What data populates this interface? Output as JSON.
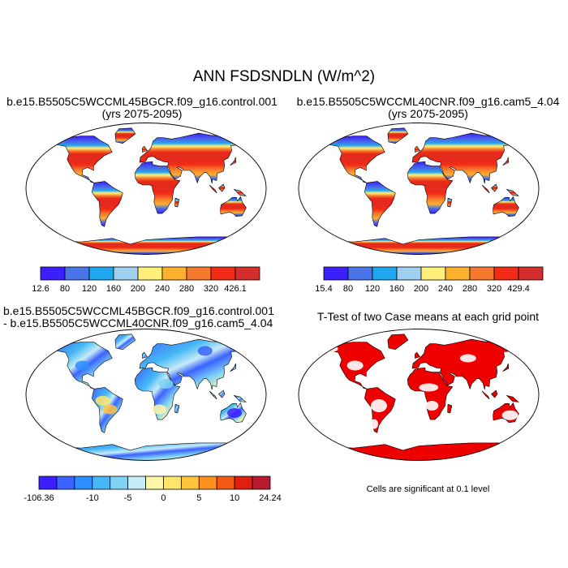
{
  "figure": {
    "title": "ANN FSDSNDLN (W/m^2)"
  },
  "panels": {
    "case1": {
      "title_line1": "b.e15.B5505C5WCCML45BGCR.f09_g16.control.001",
      "title_line2": "(yrs 2075-2095)"
    },
    "case2": {
      "title_line1": "b.e15.B5505C5WCCML40CNR.f09_g16.cam5_4.04",
      "title_line2": "(yrs 2075-2095)"
    },
    "diff": {
      "title_line1": "b.e15.B5505C5WCCML45BGCR.f09_g16.control.001",
      "title_line2": "- b.e15.B5505C5WCCML40CNR.f09_g16.cam5_4.04"
    },
    "ttest": {
      "title": "T-Test of two Case means at each grid point",
      "note": "Cells are significant at 0.1 level"
    }
  },
  "colorbars": {
    "case1": {
      "labels": [
        "12.6",
        "80",
        "120",
        "160",
        "200",
        "240",
        "280",
        "320",
        "426.1"
      ],
      "colors": [
        "#3b1fff",
        "#4a73e8",
        "#1ea7ee",
        "#9fd0ef",
        "#fff07a",
        "#fdb02e",
        "#f7792e",
        "#f22b17",
        "#d42d2d"
      ]
    },
    "case2": {
      "labels": [
        "15.4",
        "80",
        "120",
        "160",
        "200",
        "240",
        "280",
        "320",
        "429.4"
      ],
      "colors": [
        "#3b1fff",
        "#4a73e8",
        "#1ea7ee",
        "#9fd0ef",
        "#fff07a",
        "#fdb02e",
        "#f7792e",
        "#f22b17",
        "#d42d2d"
      ]
    },
    "diff": {
      "labels": [
        "-106.36",
        "-10",
        "-5",
        "0",
        "5",
        "10",
        "24.24"
      ],
      "colors": [
        "#3b1fff",
        "#3b63ff",
        "#2b8fff",
        "#45b8f5",
        "#7fd3f5",
        "#c6ecf7",
        "#fff7a8",
        "#ffe46b",
        "#ffc43a",
        "#ff8f1f",
        "#f35a16",
        "#e0200f",
        "#b8192f"
      ]
    }
  }
}
